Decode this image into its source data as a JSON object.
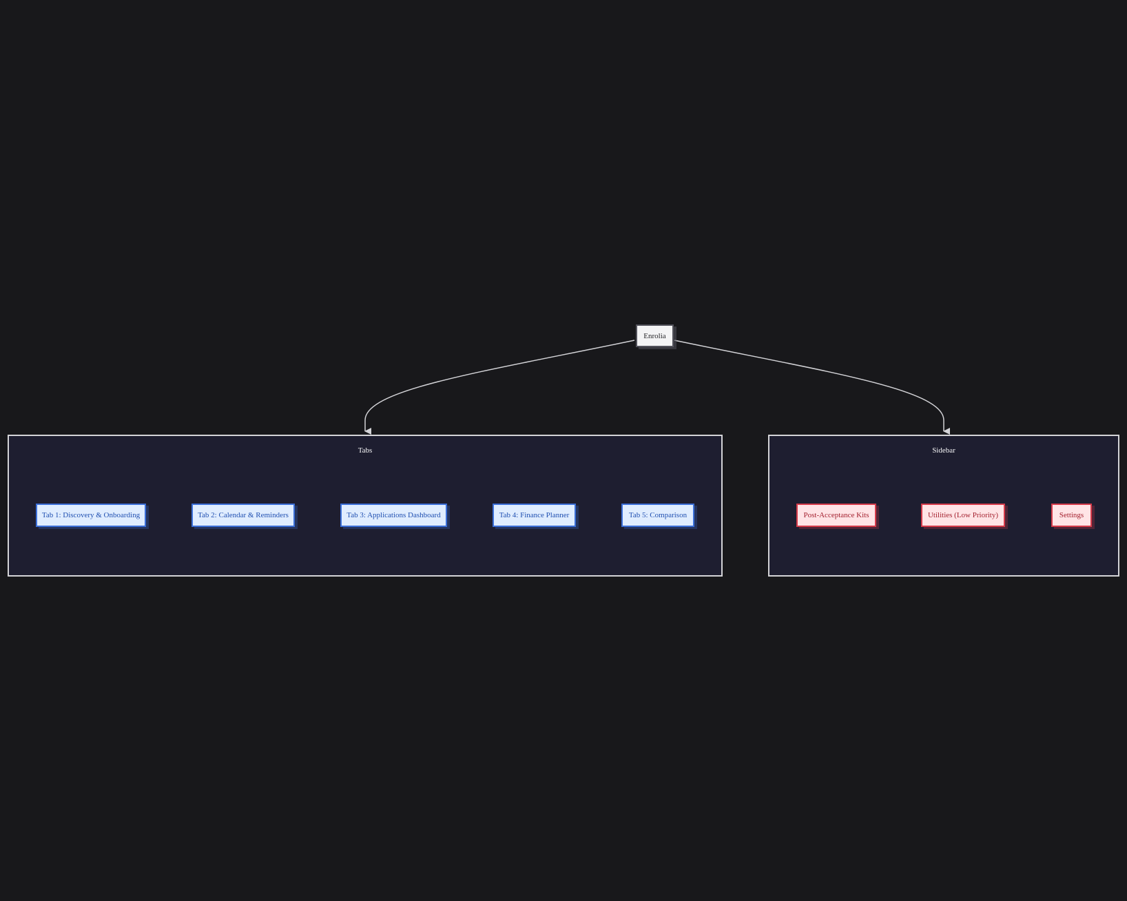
{
  "root": {
    "label": "Enrolia"
  },
  "groups": {
    "tabs": {
      "title": "Tabs",
      "items": [
        {
          "label": "Tab 1: Discovery & Onboarding"
        },
        {
          "label": "Tab 2: Calendar & Reminders"
        },
        {
          "label": "Tab 3: Applications Dashboard"
        },
        {
          "label": "Tab 4: Finance Planner"
        },
        {
          "label": "Tab 5: Comparison"
        }
      ]
    },
    "sidebar": {
      "title": "Sidebar",
      "items": [
        {
          "label": "Post-Acceptance Kits"
        },
        {
          "label": "Utilities (Low Priority)"
        },
        {
          "label": "Settings"
        }
      ]
    }
  },
  "colors": {
    "background": "#18181b",
    "cluster_fill": "#1e1e30",
    "cluster_border": "#d4d4d8",
    "tab_fill": "#e0edff",
    "tab_border": "#3b6fd8",
    "sidebar_fill": "#ffe4e6",
    "sidebar_border": "#d63b4a",
    "edge": "#d4d4d8"
  }
}
